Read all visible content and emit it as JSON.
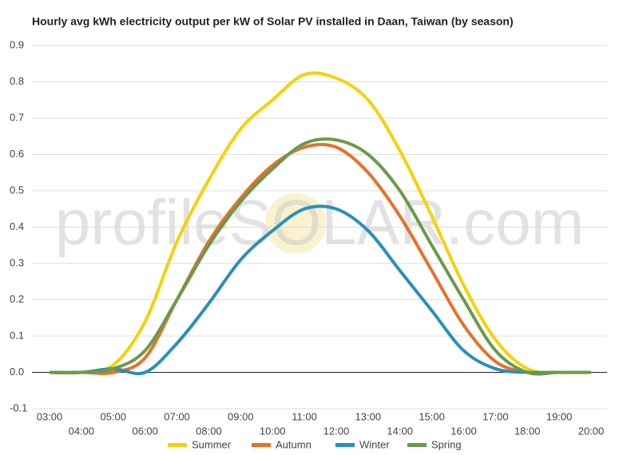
{
  "chart_data": {
    "type": "line",
    "title": "Hourly avg kWh electricity output per kW of Solar PV installed in Daan, Taiwan (by season)",
    "watermark": "profileSOLAR.com",
    "categories": [
      "03:00",
      "04:00",
      "05:00",
      "06:00",
      "07:00",
      "08:00",
      "09:00",
      "10:00",
      "11:00",
      "12:00",
      "13:00",
      "14:00",
      "15:00",
      "16:00",
      "17:00",
      "18:00",
      "19:00",
      "20:00"
    ],
    "series": [
      {
        "name": "Summer",
        "color": "#f5d10a",
        "values": [
          0,
          0,
          0.02,
          0.14,
          0.36,
          0.53,
          0.67,
          0.75,
          0.82,
          0.81,
          0.75,
          0.61,
          0.43,
          0.24,
          0.09,
          0.01,
          0,
          0
        ]
      },
      {
        "name": "Autumn",
        "color": "#e8702a",
        "values": [
          0,
          0,
          0,
          0.04,
          0.2,
          0.36,
          0.48,
          0.57,
          0.62,
          0.62,
          0.55,
          0.43,
          0.28,
          0.13,
          0.03,
          0,
          0,
          0
        ]
      },
      {
        "name": "Winter",
        "color": "#2a8fbd",
        "values": [
          0,
          0,
          0.01,
          0,
          0.08,
          0.19,
          0.31,
          0.39,
          0.45,
          0.45,
          0.39,
          0.28,
          0.17,
          0.06,
          0.01,
          0,
          0,
          0
        ]
      },
      {
        "name": "Spring",
        "color": "#6a9a4a",
        "values": [
          0,
          0,
          0.01,
          0.06,
          0.2,
          0.35,
          0.47,
          0.56,
          0.63,
          0.64,
          0.6,
          0.5,
          0.35,
          0.2,
          0.06,
          0,
          0,
          0
        ]
      }
    ],
    "ylim": [
      -0.1,
      0.9
    ],
    "yticks": [
      -0.1,
      {
        "value": 0,
        "label": "0.0"
      },
      0.1,
      0.2,
      0.3,
      0.4,
      0.5,
      0.6,
      0.7,
      0.8,
      0.9
    ],
    "grid": true
  }
}
